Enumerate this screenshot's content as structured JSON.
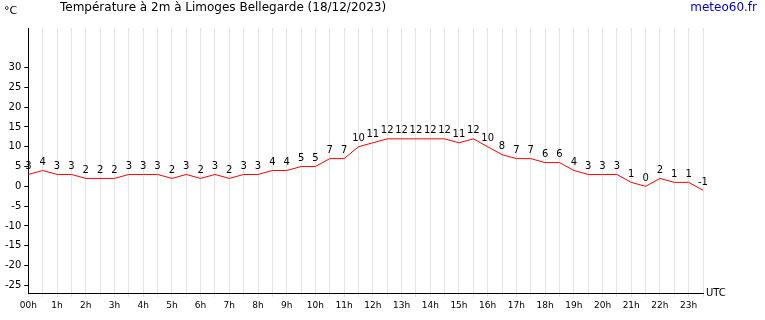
{
  "chart_data": {
    "type": "line",
    "title": "Température à 2m à Limoges Bellegarde (18/12/2023)",
    "annotation": "meteo60.fr",
    "y_label": "°C",
    "x_label": "UTC",
    "categories": [
      "00h",
      null,
      "1h",
      null,
      "2h",
      null,
      "3h",
      null,
      "4h",
      null,
      "5h",
      null,
      "6h",
      null,
      "7h",
      null,
      "8h",
      null,
      "9h",
      null,
      "10h",
      null,
      "11h",
      null,
      "12h",
      null,
      "13h",
      null,
      "14h",
      null,
      "15h",
      null,
      "16h",
      null,
      "17h",
      null,
      "18h",
      null,
      "19h",
      null,
      "20h",
      null,
      "21h",
      null,
      "22h",
      null,
      "23h",
      null
    ],
    "values": [
      3,
      4,
      3,
      3,
      2,
      2,
      2,
      3,
      3,
      3,
      2,
      3,
      2,
      3,
      2,
      3,
      3,
      4,
      4,
      5,
      5,
      7,
      7,
      10,
      11,
      12,
      12,
      12,
      12,
      12,
      11,
      12,
      10,
      8,
      7,
      7,
      6,
      6,
      4,
      3,
      3,
      3,
      1,
      0,
      2,
      1,
      1,
      -1
    ],
    "color": "#ff0000",
    "ylim": [
      -27,
      40
    ],
    "yticks": [
      -25,
      -20,
      -15,
      -10,
      -5,
      0,
      5,
      10,
      15,
      20,
      25,
      30
    ],
    "grid": true,
    "data_labels": true,
    "marker": "none"
  }
}
